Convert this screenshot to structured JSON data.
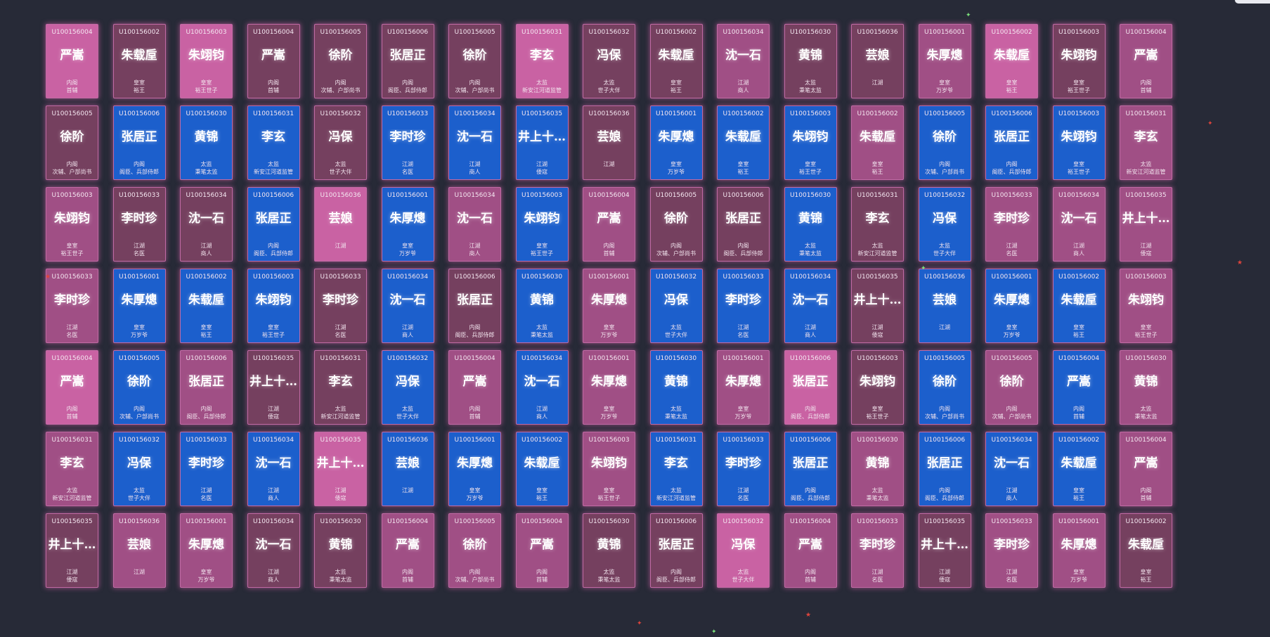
{
  "colors": {
    "background": "#272a37",
    "card_pink": "#c962a3",
    "card_mauve": "#a04f85",
    "card_plum": "#75405f",
    "card_blue": "#1c5fcc",
    "glow": "#d660a8"
  },
  "characters": {
    "U100156001": {
      "name": "朱厚熜",
      "role": "皇室",
      "title": "万岁爷"
    },
    "U100156002": {
      "name": "朱载垕",
      "role": "皇室",
      "title": "裕王"
    },
    "U100156003": {
      "name": "朱翊钧",
      "role": "皇室",
      "title": "裕王世子"
    },
    "U100156004": {
      "name": "严嵩",
      "role": "内阁",
      "title": "首辅"
    },
    "U100156005": {
      "name": "徐阶",
      "role": "内阁",
      "title": "次辅、户部尚书"
    },
    "U100156006": {
      "name": "张居正",
      "role": "内阁",
      "title": "阁臣、兵部侍郎"
    },
    "U100156030": {
      "name": "黄锦",
      "role": "太监",
      "title": "秉笔太监"
    },
    "U100156031": {
      "name": "李玄",
      "role": "太监",
      "title": "新安江河道监管"
    },
    "U100156032": {
      "name": "冯保",
      "role": "太监",
      "title": "世子大伴"
    },
    "U100156033": {
      "name": "李时珍",
      "role": "江湖",
      "title": "名医"
    },
    "U100156034": {
      "name": "沈一石",
      "role": "江湖",
      "title": "商人"
    },
    "U100156035": {
      "name": "井上十…",
      "role": "江湖",
      "title": "倭寇"
    },
    "U100156036": {
      "name": "芸娘",
      "role": "江湖",
      "title": ""
    }
  },
  "cards": [
    {
      "id": "U100156004",
      "name": "严嵩",
      "role": "内阁",
      "title": "首辅",
      "color": "pink"
    },
    {
      "id": "U100156002",
      "name": "朱载垕",
      "role": "皇室",
      "title": "裕王",
      "color": "plum"
    },
    {
      "id": "U100156003",
      "name": "朱翊钧",
      "role": "皇室",
      "title": "裕王世子",
      "color": "pink"
    },
    {
      "id": "U100156004",
      "name": "严嵩",
      "role": "内阁",
      "title": "首辅",
      "color": "plum"
    },
    {
      "id": "U100156005",
      "name": "徐阶",
      "role": "内阁",
      "title": "次辅、户部尚书",
      "color": "plum"
    },
    {
      "id": "U100156006",
      "name": "张居正",
      "role": "内阁",
      "title": "阁臣、兵部侍郎",
      "color": "plum"
    },
    {
      "id": "U100156005",
      "name": "徐阶",
      "role": "内阁",
      "title": "次辅、户部尚书",
      "color": "plum"
    },
    {
      "id": "U100156031",
      "name": "李玄",
      "role": "太监",
      "title": "新安江河道监管",
      "color": "pink"
    },
    {
      "id": "U100156032",
      "name": "冯保",
      "role": "太监",
      "title": "世子大伴",
      "color": "plum"
    },
    {
      "id": "U100156002",
      "name": "朱载垕",
      "role": "皇室",
      "title": "裕王",
      "color": "plum"
    },
    {
      "id": "U100156034",
      "name": "沈一石",
      "role": "江湖",
      "title": "商人",
      "color": "mauve"
    },
    {
      "id": "U100156030",
      "name": "黄锦",
      "role": "太监",
      "title": "秉笔太监",
      "color": "plum"
    },
    {
      "id": "U100156036",
      "name": "芸娘",
      "role": "江湖",
      "title": "",
      "color": "plum"
    },
    {
      "id": "U100156001",
      "name": "朱厚熜",
      "role": "皇室",
      "title": "万岁爷",
      "color": "mauve"
    },
    {
      "id": "U100156002",
      "name": "朱载垕",
      "role": "皇室",
      "title": "裕王",
      "color": "pink"
    },
    {
      "id": "U100156003",
      "name": "朱翊钧",
      "role": "皇室",
      "title": "裕王世子",
      "color": "plum"
    },
    {
      "id": "U100156004",
      "name": "严嵩",
      "role": "内阁",
      "title": "首辅",
      "color": "mauve"
    },
    {
      "id": "U100156005",
      "name": "徐阶",
      "role": "内阁",
      "title": "次辅、户部尚书",
      "color": "plum"
    },
    {
      "id": "U100156006",
      "name": "张居正",
      "role": "内阁",
      "title": "阁臣、兵部侍郎",
      "color": "blue"
    },
    {
      "id": "U100156030",
      "name": "黄锦",
      "role": "太监",
      "title": "秉笔太监",
      "color": "blue"
    },
    {
      "id": "U100156031",
      "name": "李玄",
      "role": "太监",
      "title": "新安江河道监管",
      "color": "blue"
    },
    {
      "id": "U100156032",
      "name": "冯保",
      "role": "太监",
      "title": "世子大伴",
      "color": "plum"
    },
    {
      "id": "U100156033",
      "name": "李时珍",
      "role": "江湖",
      "title": "名医",
      "color": "blue"
    },
    {
      "id": "U100156034",
      "name": "沈一石",
      "role": "江湖",
      "title": "商人",
      "color": "blue"
    },
    {
      "id": "U100156035",
      "name": "井上十…",
      "role": "江湖",
      "title": "倭寇",
      "color": "blue"
    },
    {
      "id": "U100156036",
      "name": "芸娘",
      "role": "江湖",
      "title": "",
      "color": "plum"
    },
    {
      "id": "U100156001",
      "name": "朱厚熜",
      "role": "皇室",
      "title": "万岁爷",
      "color": "blue"
    },
    {
      "id": "U100156002",
      "name": "朱载垕",
      "role": "皇室",
      "title": "裕王",
      "color": "blue"
    },
    {
      "id": "U100156003",
      "name": "朱翊钧",
      "role": "皇室",
      "title": "裕王世子",
      "color": "blue"
    },
    {
      "id": "U100156002",
      "name": "朱载垕",
      "role": "皇室",
      "title": "裕王",
      "color": "mauve"
    },
    {
      "id": "U100156005",
      "name": "徐阶",
      "role": "内阁",
      "title": "次辅、户部尚书",
      "color": "blue"
    },
    {
      "id": "U100156006",
      "name": "张居正",
      "role": "内阁",
      "title": "阁臣、兵部侍郎",
      "color": "blue"
    },
    {
      "id": "U100156003",
      "name": "朱翊钧",
      "role": "皇室",
      "title": "裕王世子",
      "color": "blue"
    },
    {
      "id": "U100156031",
      "name": "李玄",
      "role": "太监",
      "title": "新安江河道监管",
      "color": "mauve"
    },
    {
      "id": "U100156003",
      "name": "朱翊钧",
      "role": "皇室",
      "title": "裕王世子",
      "color": "mauve"
    },
    {
      "id": "U100156033",
      "name": "李时珍",
      "role": "江湖",
      "title": "名医",
      "color": "plum"
    },
    {
      "id": "U100156034",
      "name": "沈一石",
      "role": "江湖",
      "title": "商人",
      "color": "plum"
    },
    {
      "id": "U100156006",
      "name": "张居正",
      "role": "内阁",
      "title": "阁臣、兵部侍郎",
      "color": "blue"
    },
    {
      "id": "U100156036",
      "name": "芸娘",
      "role": "江湖",
      "title": "",
      "color": "pink"
    },
    {
      "id": "U100156001",
      "name": "朱厚熜",
      "role": "皇室",
      "title": "万岁爷",
      "color": "blue"
    },
    {
      "id": "U100156034",
      "name": "沈一石",
      "role": "江湖",
      "title": "商人",
      "color": "mauve"
    },
    {
      "id": "U100156003",
      "name": "朱翊钧",
      "role": "皇室",
      "title": "裕王世子",
      "color": "blue"
    },
    {
      "id": "U100156004",
      "name": "严嵩",
      "role": "内阁",
      "title": "首辅",
      "color": "mauve"
    },
    {
      "id": "U100156005",
      "name": "徐阶",
      "role": "内阁",
      "title": "次辅、户部尚书",
      "color": "plum"
    },
    {
      "id": "U100156006",
      "name": "张居正",
      "role": "内阁",
      "title": "阁臣、兵部侍郎",
      "color": "plum"
    },
    {
      "id": "U100156030",
      "name": "黄锦",
      "role": "太监",
      "title": "秉笔太监",
      "color": "blue"
    },
    {
      "id": "U100156031",
      "name": "李玄",
      "role": "太监",
      "title": "新安江河道监管",
      "color": "plum"
    },
    {
      "id": "U100156032",
      "name": "冯保",
      "role": "太监",
      "title": "世子大伴",
      "color": "blue"
    },
    {
      "id": "U100156033",
      "name": "李时珍",
      "role": "江湖",
      "title": "名医",
      "color": "mauve"
    },
    {
      "id": "U100156034",
      "name": "沈一石",
      "role": "江湖",
      "title": "商人",
      "color": "mauve"
    },
    {
      "id": "U100156035",
      "name": "井上十…",
      "role": "江湖",
      "title": "倭寇",
      "color": "mauve"
    },
    {
      "id": "U100156033",
      "name": "李时珍",
      "role": "江湖",
      "title": "名医",
      "color": "mauve"
    },
    {
      "id": "U100156001",
      "name": "朱厚熜",
      "role": "皇室",
      "title": "万岁爷",
      "color": "blue"
    },
    {
      "id": "U100156002",
      "name": "朱载垕",
      "role": "皇室",
      "title": "裕王",
      "color": "blue"
    },
    {
      "id": "U100156003",
      "name": "朱翊钧",
      "role": "皇室",
      "title": "裕王世子",
      "color": "blue"
    },
    {
      "id": "U100156033",
      "name": "李时珍",
      "role": "江湖",
      "title": "名医",
      "color": "plum"
    },
    {
      "id": "U100156034",
      "name": "沈一石",
      "role": "江湖",
      "title": "商人",
      "color": "blue"
    },
    {
      "id": "U100156006",
      "name": "张居正",
      "role": "内阁",
      "title": "阁臣、兵部侍郎",
      "color": "plum"
    },
    {
      "id": "U100156030",
      "name": "黄锦",
      "role": "太监",
      "title": "秉笔太监",
      "color": "blue"
    },
    {
      "id": "U100156001",
      "name": "朱厚熜",
      "role": "皇室",
      "title": "万岁爷",
      "color": "mauve"
    },
    {
      "id": "U100156032",
      "name": "冯保",
      "role": "太监",
      "title": "世子大伴",
      "color": "blue"
    },
    {
      "id": "U100156033",
      "name": "李时珍",
      "role": "江湖",
      "title": "名医",
      "color": "blue"
    },
    {
      "id": "U100156034",
      "name": "沈一石",
      "role": "江湖",
      "title": "商人",
      "color": "blue"
    },
    {
      "id": "U100156035",
      "name": "井上十…",
      "role": "江湖",
      "title": "倭寇",
      "color": "plum"
    },
    {
      "id": "U100156036",
      "name": "芸娘",
      "role": "江湖",
      "title": "",
      "color": "blue"
    },
    {
      "id": "U100156001",
      "name": "朱厚熜",
      "role": "皇室",
      "title": "万岁爷",
      "color": "blue"
    },
    {
      "id": "U100156002",
      "name": "朱载垕",
      "role": "皇室",
      "title": "裕王",
      "color": "blue"
    },
    {
      "id": "U100156003",
      "name": "朱翊钧",
      "role": "皇室",
      "title": "裕王世子",
      "color": "mauve"
    },
    {
      "id": "U100156004",
      "name": "严嵩",
      "role": "内阁",
      "title": "首辅",
      "color": "pink"
    },
    {
      "id": "U100156005",
      "name": "徐阶",
      "role": "内阁",
      "title": "次辅、户部尚书",
      "color": "blue"
    },
    {
      "id": "U100156006",
      "name": "张居正",
      "role": "内阁",
      "title": "阁臣、兵部侍郎",
      "color": "mauve"
    },
    {
      "id": "U100156035",
      "name": "井上十…",
      "role": "江湖",
      "title": "倭寇",
      "color": "plum"
    },
    {
      "id": "U100156031",
      "name": "李玄",
      "role": "太监",
      "title": "新安江河道监管",
      "color": "plum"
    },
    {
      "id": "U100156032",
      "name": "冯保",
      "role": "太监",
      "title": "世子大伴",
      "color": "blue"
    },
    {
      "id": "U100156004",
      "name": "严嵩",
      "role": "内阁",
      "title": "首辅",
      "color": "mauve"
    },
    {
      "id": "U100156034",
      "name": "沈一石",
      "role": "江湖",
      "title": "商人",
      "color": "blue"
    },
    {
      "id": "U100156001",
      "name": "朱厚熜",
      "role": "皇室",
      "title": "万岁爷",
      "color": "mauve"
    },
    {
      "id": "U100156030",
      "name": "黄锦",
      "role": "太监",
      "title": "秉笔太监",
      "color": "blue"
    },
    {
      "id": "U100156001",
      "name": "朱厚熜",
      "role": "皇室",
      "title": "万岁爷",
      "color": "mauve"
    },
    {
      "id": "U100156006",
      "name": "张居正",
      "role": "内阁",
      "title": "阁臣、兵部侍郎",
      "color": "pink"
    },
    {
      "id": "U100156003",
      "name": "朱翊钧",
      "role": "皇室",
      "title": "裕王世子",
      "color": "plum"
    },
    {
      "id": "U100156005",
      "name": "徐阶",
      "role": "内阁",
      "title": "次辅、户部尚书",
      "color": "blue"
    },
    {
      "id": "U100156005",
      "name": "徐阶",
      "role": "内阁",
      "title": "次辅、户部尚书",
      "color": "mauve"
    },
    {
      "id": "U100156004",
      "name": "严嵩",
      "role": "内阁",
      "title": "首辅",
      "color": "blue"
    },
    {
      "id": "U100156030",
      "name": "黄锦",
      "role": "太监",
      "title": "秉笔太监",
      "color": "mauve"
    },
    {
      "id": "U100156031",
      "name": "李玄",
      "role": "太监",
      "title": "新安江河道监管",
      "color": "mauve"
    },
    {
      "id": "U100156032",
      "name": "冯保",
      "role": "太监",
      "title": "世子大伴",
      "color": "blue"
    },
    {
      "id": "U100156033",
      "name": "李时珍",
      "role": "江湖",
      "title": "名医",
      "color": "blue"
    },
    {
      "id": "U100156034",
      "name": "沈一石",
      "role": "江湖",
      "title": "商人",
      "color": "blue"
    },
    {
      "id": "U100156035",
      "name": "井上十…",
      "role": "江湖",
      "title": "倭寇",
      "color": "pink"
    },
    {
      "id": "U100156036",
      "name": "芸娘",
      "role": "江湖",
      "title": "",
      "color": "blue"
    },
    {
      "id": "U100156001",
      "name": "朱厚熜",
      "role": "皇室",
      "title": "万岁爷",
      "color": "blue"
    },
    {
      "id": "U100156002",
      "name": "朱载垕",
      "role": "皇室",
      "title": "裕王",
      "color": "blue"
    },
    {
      "id": "U100156003",
      "name": "朱翊钧",
      "role": "皇室",
      "title": "裕王世子",
      "color": "mauve"
    },
    {
      "id": "U100156031",
      "name": "李玄",
      "role": "太监",
      "title": "新安江河道监管",
      "color": "blue"
    },
    {
      "id": "U100156033",
      "name": "李时珍",
      "role": "江湖",
      "title": "名医",
      "color": "blue"
    },
    {
      "id": "U100156006",
      "name": "张居正",
      "role": "内阁",
      "title": "阁臣、兵部侍郎",
      "color": "blue"
    },
    {
      "id": "U100156030",
      "name": "黄锦",
      "role": "太监",
      "title": "秉笔太监",
      "color": "mauve"
    },
    {
      "id": "U100156006",
      "name": "张居正",
      "role": "内阁",
      "title": "阁臣、兵部侍郎",
      "color": "blue"
    },
    {
      "id": "U100156034",
      "name": "沈一石",
      "role": "江湖",
      "title": "商人",
      "color": "blue"
    },
    {
      "id": "U100156002",
      "name": "朱载垕",
      "role": "皇室",
      "title": "裕王",
      "color": "blue"
    },
    {
      "id": "U100156004",
      "name": "严嵩",
      "role": "内阁",
      "title": "首辅",
      "color": "mauve"
    },
    {
      "id": "U100156035",
      "name": "井上十…",
      "role": "江湖",
      "title": "倭寇",
      "color": "plum"
    },
    {
      "id": "U100156036",
      "name": "芸娘",
      "role": "江湖",
      "title": "",
      "color": "mauve"
    },
    {
      "id": "U100156001",
      "name": "朱厚熜",
      "role": "皇室",
      "title": "万岁爷",
      "color": "mauve"
    },
    {
      "id": "U100156034",
      "name": "沈一石",
      "role": "江湖",
      "title": "商人",
      "color": "plum"
    },
    {
      "id": "U100156030",
      "name": "黄锦",
      "role": "太监",
      "title": "秉笔太监",
      "color": "plum"
    },
    {
      "id": "U100156004",
      "name": "严嵩",
      "role": "内阁",
      "title": "首辅",
      "color": "mauve"
    },
    {
      "id": "U100156005",
      "name": "徐阶",
      "role": "内阁",
      "title": "次辅、户部尚书",
      "color": "mauve"
    },
    {
      "id": "U100156004",
      "name": "严嵩",
      "role": "内阁",
      "title": "首辅",
      "color": "mauve"
    },
    {
      "id": "U100156030",
      "name": "黄锦",
      "role": "太监",
      "title": "秉笔太监",
      "color": "plum"
    },
    {
      "id": "U100156006",
      "name": "张居正",
      "role": "内阁",
      "title": "阁臣、兵部侍郎",
      "color": "plum"
    },
    {
      "id": "U100156032",
      "name": "冯保",
      "role": "太监",
      "title": "世子大伴",
      "color": "pink"
    },
    {
      "id": "U100156004",
      "name": "严嵩",
      "role": "内阁",
      "title": "首辅",
      "color": "mauve"
    },
    {
      "id": "U100156033",
      "name": "李时珍",
      "role": "江湖",
      "title": "名医",
      "color": "mauve"
    },
    {
      "id": "U100156035",
      "name": "井上十…",
      "role": "江湖",
      "title": "倭寇",
      "color": "plum"
    },
    {
      "id": "U100156033",
      "name": "李时珍",
      "role": "江湖",
      "title": "名医",
      "color": "mauve"
    },
    {
      "id": "U100156001",
      "name": "朱厚熜",
      "role": "皇室",
      "title": "万岁爷",
      "color": "mauve"
    },
    {
      "id": "U100156002",
      "name": "朱载垕",
      "role": "皇室",
      "title": "裕王",
      "color": "plum"
    }
  ],
  "sparkles": [
    {
      "glyph": "✦",
      "color": "#7be07b"
    },
    {
      "glyph": "✦",
      "color": "#e0443c"
    },
    {
      "glyph": "✦",
      "color": "#7be07b"
    },
    {
      "glyph": "★",
      "color": "#e0443c"
    },
    {
      "glyph": "★",
      "color": "#e0443c"
    },
    {
      "glyph": "★",
      "color": "#e0443c"
    },
    {
      "glyph": "✦",
      "color": "#7be07b"
    },
    {
      "glyph": "✦",
      "color": "#e0443c"
    }
  ]
}
